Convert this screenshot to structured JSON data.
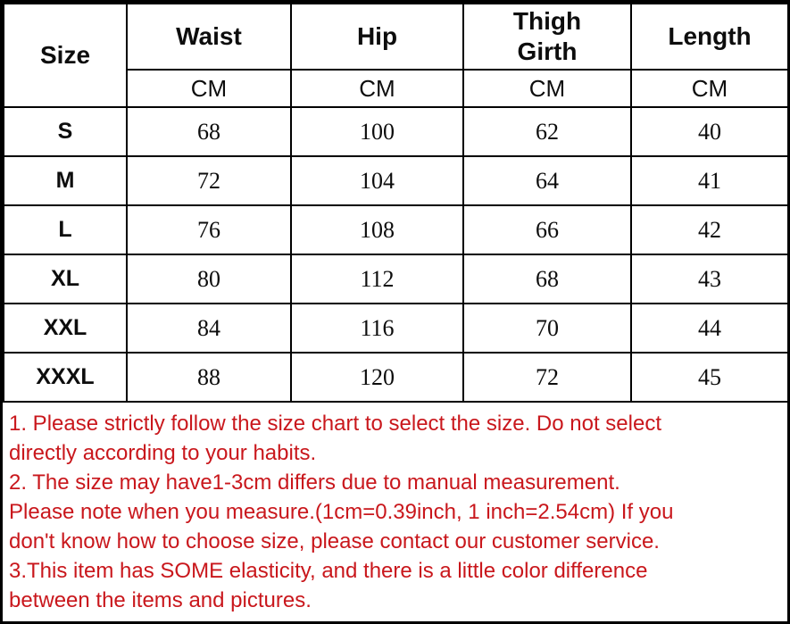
{
  "colors": {
    "note_text_red": "#c9171c",
    "table_line_black": "#000000",
    "background": "#ffffff"
  },
  "size_chart": {
    "columns": [
      "Size",
      "Waist",
      "Hip",
      "Thigh Girth",
      "Length"
    ],
    "unit_row": [
      "CM",
      "CM",
      "CM",
      "CM"
    ],
    "rows": [
      {
        "size": "S",
        "values": [
          "68",
          "100",
          "62",
          "40"
        ]
      },
      {
        "size": "M",
        "values": [
          "72",
          "104",
          "64",
          "41"
        ]
      },
      {
        "size": "L",
        "values": [
          "76",
          "108",
          "66",
          "42"
        ]
      },
      {
        "size": "XL",
        "values": [
          "80",
          "112",
          "68",
          "43"
        ]
      },
      {
        "size": "XXL",
        "values": [
          "84",
          "116",
          "70",
          "44"
        ]
      },
      {
        "size": "XXXL",
        "values": [
          "88",
          "120",
          "72",
          "45"
        ]
      }
    ]
  },
  "notes": {
    "lines": [
      "1. Please strictly follow the size chart to select the size. Do not select",
      "directly according to your habits.",
      "2. The size may have1-3cm differs due to manual measurement.",
      "Please note when you measure.(1cm=0.39inch, 1 inch=2.54cm) If you",
      "don't know how to choose size, please contact our customer service.",
      "3.This item has SOME elasticity, and there is a little color difference",
      "between the items and pictures."
    ]
  }
}
